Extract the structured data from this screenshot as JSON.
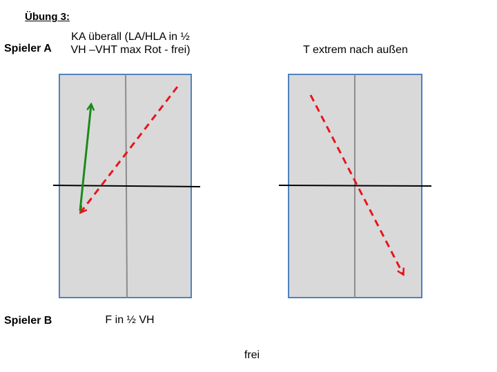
{
  "slide": {
    "title": "Übung 3:",
    "player_a": "Spieler A",
    "player_b": "Spieler B",
    "left_field_caption": "KA überall (LA/HLA in ½ VH –VHT max Rot - frei)",
    "right_field_caption": "T extrem nach außen",
    "left_field_bottom_caption": "F in ½ VH",
    "footer": "frei"
  },
  "colors": {
    "court_fill": "#d9d9d9",
    "court_border": "#4f81bd",
    "center_line": "#8c8c8c",
    "net_line": "#000000",
    "arrow_red": "#e8141b",
    "arrow_green": "#1a8a1a"
  }
}
